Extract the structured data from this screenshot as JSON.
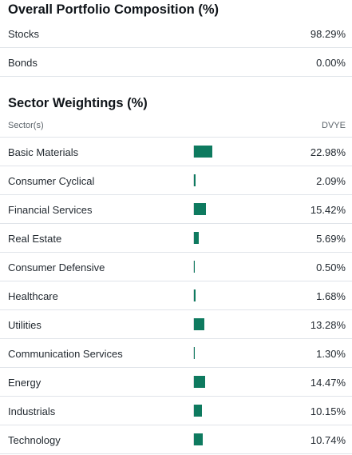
{
  "portfolio": {
    "title": "Overall Portfolio Composition (%)",
    "rows": [
      {
        "label": "Stocks",
        "value": "98.29%"
      },
      {
        "label": "Bonds",
        "value": "0.00%"
      }
    ]
  },
  "sectors": {
    "title": "Sector Weightings (%)",
    "column_left": "Sector(s)",
    "column_right": "DVYE",
    "bar_color": "#0e7a5f",
    "rows": [
      {
        "label": "Basic Materials",
        "value": "22.98%",
        "pct": 22.98
      },
      {
        "label": "Consumer Cyclical",
        "value": "2.09%",
        "pct": 2.09
      },
      {
        "label": "Financial Services",
        "value": "15.42%",
        "pct": 15.42
      },
      {
        "label": "Real Estate",
        "value": "5.69%",
        "pct": 5.69
      },
      {
        "label": "Consumer Defensive",
        "value": "0.50%",
        "pct": 0.5
      },
      {
        "label": "Healthcare",
        "value": "1.68%",
        "pct": 1.68
      },
      {
        "label": "Utilities",
        "value": "13.28%",
        "pct": 13.28
      },
      {
        "label": "Communication Services",
        "value": "1.30%",
        "pct": 1.3
      },
      {
        "label": "Energy",
        "value": "14.47%",
        "pct": 14.47
      },
      {
        "label": "Industrials",
        "value": "10.15%",
        "pct": 10.15
      },
      {
        "label": "Technology",
        "value": "10.74%",
        "pct": 10.74
      }
    ]
  }
}
